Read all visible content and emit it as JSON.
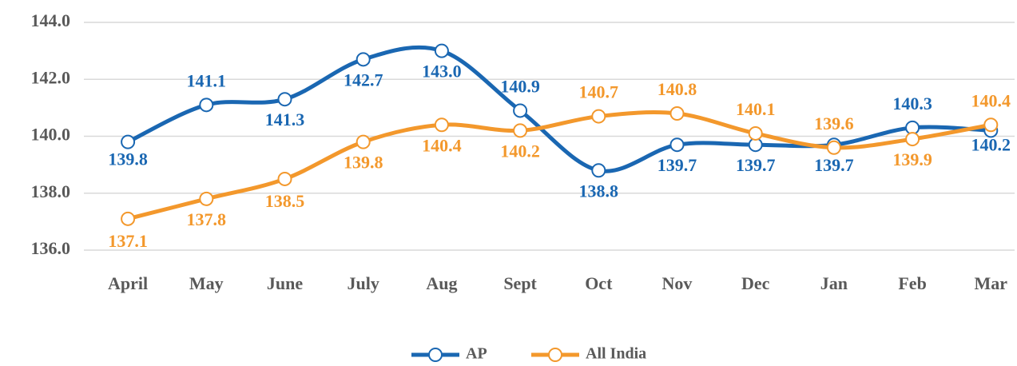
{
  "chart_data": {
    "type": "line",
    "categories": [
      "April",
      "May",
      "June",
      "July",
      "Aug",
      "Sept",
      "Oct",
      "Nov",
      "Dec",
      "Jan",
      "Feb",
      "Mar"
    ],
    "series": [
      {
        "name": "AP",
        "color": "#1a67b2",
        "values": [
          139.8,
          141.1,
          141.3,
          142.7,
          143.0,
          140.9,
          138.8,
          139.7,
          139.7,
          139.7,
          140.3,
          140.2
        ],
        "value_labels": [
          "139.8",
          "141.1",
          "141.3",
          "142.7",
          "143.0",
          "140.9",
          "138.8",
          "139.7",
          "139.7",
          "139.7",
          "140.3",
          "140.2"
        ]
      },
      {
        "name": "All India",
        "color": "#f3982c",
        "values": [
          137.1,
          137.8,
          138.5,
          139.8,
          140.4,
          140.2,
          140.7,
          140.8,
          140.1,
          139.6,
          139.9,
          140.4
        ],
        "value_labels": [
          "137.1",
          "137.8",
          "138.5",
          "139.8",
          "140.4",
          "140.2",
          "140.7",
          "140.8",
          "140.1",
          "139.6",
          "139.9",
          "140.4"
        ]
      }
    ],
    "ylim": [
      136,
      144
    ],
    "yticks": [
      {
        "value": 136,
        "label": "136.0"
      },
      {
        "value": 138,
        "label": "138.0"
      },
      {
        "value": 140,
        "label": "140.0"
      },
      {
        "value": 142,
        "label": "142.0"
      },
      {
        "value": 144,
        "label": "144.0"
      }
    ],
    "grid": true,
    "legend": "bottom"
  }
}
